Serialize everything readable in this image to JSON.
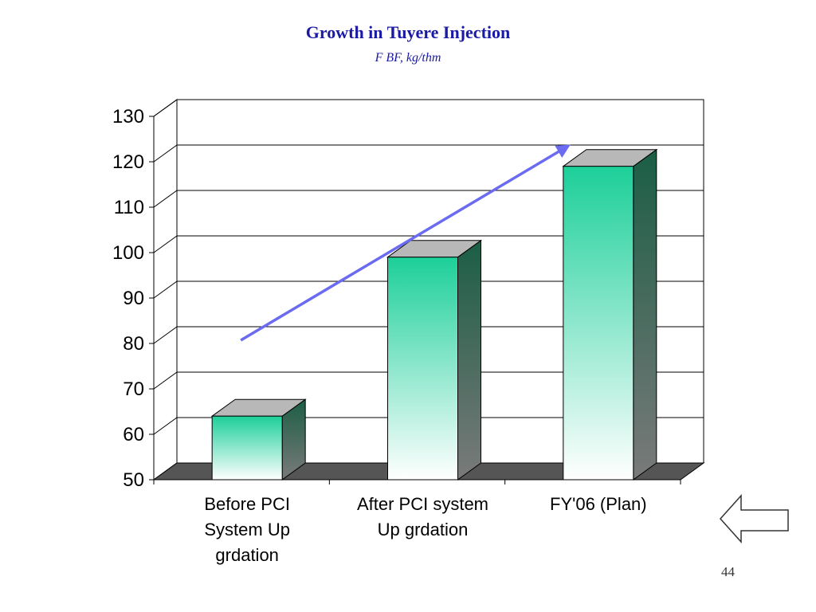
{
  "slide": {
    "page_number": "44",
    "back_icon": "left-arrow-icon"
  },
  "colors": {
    "title": "#1a1aa6",
    "bar_top": "#1ccf99",
    "bar_bottom": "#ffffff",
    "bar_side": "#1b5e45",
    "trend_arrow": "#6b6bf2",
    "floor": "#555555"
  },
  "chart_data": {
    "type": "bar",
    "title": "Growth in Tuyere Injection",
    "subtitle": "F BF, kg/thm",
    "categories": [
      [
        "Before PCI",
        "System Up",
        "grdation"
      ],
      [
        "After PCI system",
        "Up grdation"
      ],
      [
        "FY'06 (Plan)"
      ]
    ],
    "values": [
      64,
      99,
      119
    ],
    "ylim": [
      50,
      130
    ],
    "yticks": [
      50,
      60,
      70,
      80,
      90,
      100,
      110,
      120,
      130
    ],
    "grid": true,
    "style": "3d-column",
    "annotations": [
      {
        "type": "arrow",
        "from": [
          0,
          80
        ],
        "to": [
          2,
          121
        ]
      }
    ]
  }
}
